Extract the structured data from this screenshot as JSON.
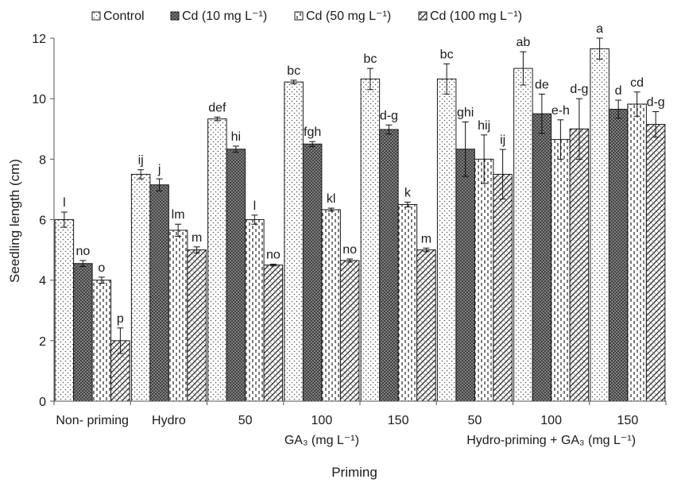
{
  "chart_data": {
    "type": "bar",
    "xlabel": "Priming",
    "ylabel": "Seedling length (cm)",
    "ylim": [
      0,
      12
    ],
    "yticks": [
      0,
      2,
      4,
      6,
      8,
      10,
      12
    ],
    "grid": false,
    "legend_position": "top",
    "categories": [
      "Non- priming",
      "Hydro",
      "50",
      "100",
      "150",
      "50",
      "100",
      "150"
    ],
    "group_labels": [
      {
        "label": "GA₃ (mg L⁻¹)",
        "start_index": 2,
        "end_index": 4
      },
      {
        "label": "Hydro-priming + GA₃ (mg L⁻¹)",
        "start_index": 5,
        "end_index": 7
      }
    ],
    "series": [
      {
        "name": "Control",
        "pattern": "dots",
        "values": [
          6.0,
          7.5,
          9.33,
          10.55,
          10.65,
          10.65,
          11.0,
          11.65
        ],
        "errors": [
          0.25,
          0.15,
          0.06,
          0.06,
          0.35,
          0.5,
          0.55,
          0.35
        ],
        "labels": [
          "l",
          "ij",
          "def",
          "bc",
          "bc",
          "bc",
          "ab",
          "a"
        ]
      },
      {
        "name": "Cd (10 mg L⁻¹)",
        "pattern": "crosshatch",
        "values": [
          4.55,
          7.15,
          8.33,
          8.5,
          8.98,
          8.33,
          9.5,
          9.65
        ],
        "errors": [
          0.1,
          0.2,
          0.1,
          0.08,
          0.15,
          0.9,
          0.65,
          0.3
        ],
        "labels": [
          "no",
          "j",
          "hi",
          "fgh",
          "d-g",
          "ghi",
          "de",
          "d"
        ]
      },
      {
        "name": "Cd (50 mg L⁻¹)",
        "pattern": "dashes",
        "values": [
          4.0,
          5.65,
          6.0,
          6.33,
          6.5,
          8.0,
          8.65,
          9.82
        ],
        "errors": [
          0.1,
          0.2,
          0.15,
          0.05,
          0.08,
          0.8,
          0.65,
          0.4
        ],
        "labels": [
          "o",
          "lm",
          "l",
          "kl",
          "k",
          "hij",
          "e-h",
          "cd"
        ]
      },
      {
        "name": "Cd (100 mg L⁻¹)",
        "pattern": "diagonal-cross",
        "values": [
          2.0,
          5.0,
          4.5,
          4.65,
          5.0,
          7.5,
          9.0,
          9.15
        ],
        "errors": [
          0.42,
          0.1,
          0.03,
          0.05,
          0.06,
          0.82,
          1.0,
          0.42
        ],
        "labels": [
          "p",
          "m",
          "no",
          "no",
          "m",
          "ij",
          "d-g",
          "d-g"
        ]
      }
    ]
  }
}
